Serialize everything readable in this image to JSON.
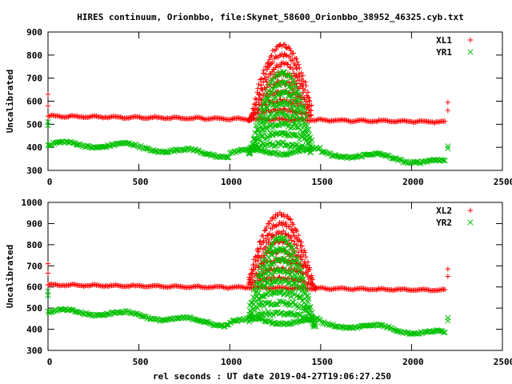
{
  "title": "HIRES continuum, Orionbbo, file:Skynet_58600_Orionbbo_38952_46325.cyb.txt",
  "xlabel": "rel seconds : UT date 2019-04-27T19:06:27.250",
  "colors": {
    "red": "#ff0000",
    "green": "#00c000",
    "axis": "#000000"
  },
  "chart_data": [
    {
      "type": "scatter",
      "id": "top",
      "title": "HIRES continuum, Orionbbo, file:Skynet_58600_Orionbbo_38952_46325.cyb.txt",
      "xlabel": "",
      "ylabel": "Uncalibrated",
      "xlim": [
        0,
        2500
      ],
      "ylim": [
        300,
        900
      ],
      "xticks": [
        0,
        500,
        1000,
        1500,
        2000,
        2500
      ],
      "yticks": [
        300,
        400,
        500,
        600,
        700,
        800,
        900
      ],
      "legend_position": "top-right",
      "series": [
        {
          "name": "XL1",
          "marker": "+",
          "color": "#ff0000",
          "baseline": 535,
          "baseline_end": 510,
          "bump_peak": 840,
          "bump_center": 1290,
          "bump_start": 1100,
          "bump_end": 1450,
          "edge_points": [
            [
              0,
              630
            ],
            [
              0,
              580
            ],
            [
              2200,
              595
            ],
            [
              2200,
              560
            ]
          ]
        },
        {
          "name": "YR1",
          "marker": "x",
          "color": "#00c000",
          "baseline": 410,
          "baseline_end": 340,
          "bump_peak": 725,
          "bump_center": 1290,
          "bump_start": 1100,
          "bump_end": 1450,
          "edge_points": [
            [
              0,
              510
            ],
            [
              0,
              495
            ],
            [
              2200,
              405
            ],
            [
              2200,
              395
            ]
          ]
        }
      ]
    },
    {
      "type": "scatter",
      "id": "bottom",
      "title": "",
      "xlabel": "rel seconds : UT date 2019-04-27T19:06:27.250",
      "ylabel": "Uncalibrated",
      "xlim": [
        0,
        2500
      ],
      "ylim": [
        300,
        1000
      ],
      "xticks": [
        0,
        500,
        1000,
        1500,
        2000,
        2500
      ],
      "yticks": [
        300,
        400,
        500,
        600,
        700,
        800,
        900,
        1000
      ],
      "legend_position": "top-right",
      "series": [
        {
          "name": "XL2",
          "marker": "+",
          "color": "#ff0000",
          "baseline": 610,
          "baseline_end": 585,
          "bump_peak": 945,
          "bump_center": 1280,
          "bump_start": 1100,
          "bump_end": 1470,
          "edge_points": [
            [
              0,
              710
            ],
            [
              0,
              665
            ],
            [
              2200,
              685
            ],
            [
              2200,
              650
            ]
          ]
        },
        {
          "name": "YR2",
          "marker": "x",
          "color": "#00c000",
          "baseline": 480,
          "baseline_end": 385,
          "bump_peak": 830,
          "bump_center": 1280,
          "bump_start": 1100,
          "bump_end": 1470,
          "edge_points": [
            [
              0,
              580
            ],
            [
              0,
              560
            ],
            [
              2200,
              455
            ],
            [
              2200,
              440
            ]
          ]
        }
      ]
    }
  ]
}
